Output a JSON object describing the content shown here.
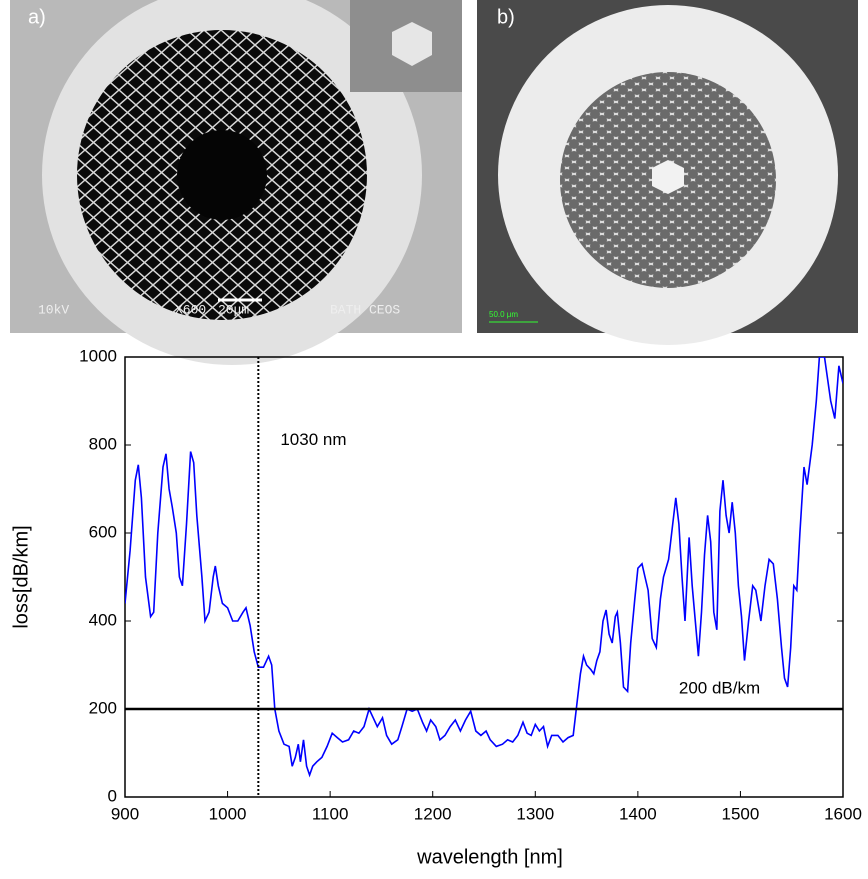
{
  "panels": [
    {
      "label": "a)",
      "texts": [
        "10kV",
        "X600",
        "20μm",
        "BATH CEOS"
      ]
    },
    {
      "label": "b)",
      "texts": [
        "50.0 μm"
      ]
    }
  ],
  "chart_data": {
    "type": "line",
    "xlabel": "wavelength [nm]",
    "ylabel": "loss[dB/km]",
    "xlim": [
      900,
      1600
    ],
    "xticks": [
      900,
      1000,
      1100,
      1200,
      1300,
      1400,
      1500,
      1600
    ],
    "ylim": [
      0,
      1000
    ],
    "yticks": [
      0,
      200,
      400,
      600,
      800,
      1000
    ],
    "vline": 1030,
    "hline": 200,
    "annotations": [
      "1030 nm",
      "200 dB/km"
    ],
    "x": [
      900,
      905,
      910,
      913,
      916,
      920,
      925,
      928,
      932,
      937,
      940,
      943,
      946,
      950,
      953,
      956,
      960,
      964,
      967,
      970,
      975,
      978,
      982,
      986,
      988,
      991,
      995,
      1000,
      1005,
      1010,
      1015,
      1018,
      1022,
      1026,
      1030,
      1035,
      1040,
      1043,
      1046,
      1050,
      1055,
      1060,
      1063,
      1066,
      1069,
      1071,
      1074,
      1077,
      1080,
      1083,
      1087,
      1092,
      1097,
      1102,
      1107,
      1112,
      1118,
      1123,
      1128,
      1133,
      1138,
      1142,
      1146,
      1151,
      1155,
      1160,
      1166,
      1170,
      1175,
      1180,
      1185,
      1190,
      1194,
      1198,
      1203,
      1207,
      1212,
      1217,
      1222,
      1227,
      1232,
      1237,
      1242,
      1247,
      1252,
      1256,
      1262,
      1268,
      1273,
      1278,
      1283,
      1288,
      1292,
      1296,
      1300,
      1304,
      1308,
      1312,
      1316,
      1322,
      1327,
      1332,
      1337,
      1340,
      1344,
      1347,
      1350,
      1354,
      1357,
      1360,
      1363,
      1366,
      1369,
      1372,
      1375,
      1378,
      1380,
      1383,
      1386,
      1390,
      1393,
      1397,
      1400,
      1404,
      1407,
      1410,
      1414,
      1418,
      1422,
      1425,
      1430,
      1434,
      1437,
      1440,
      1443,
      1446,
      1450,
      1453,
      1456,
      1459,
      1462,
      1465,
      1468,
      1471,
      1474,
      1477,
      1480,
      1483,
      1486,
      1489,
      1492,
      1495,
      1498,
      1501,
      1504,
      1508,
      1512,
      1515,
      1520,
      1524,
      1528,
      1532,
      1536,
      1540,
      1543,
      1546,
      1549,
      1552,
      1555,
      1558,
      1562,
      1565,
      1570,
      1574,
      1577,
      1582,
      1585,
      1588,
      1592,
      1596,
      1600
    ],
    "series": [
      {
        "color": "#0000ff",
        "values": [
          440,
          560,
          720,
          755,
          680,
          500,
          410,
          420,
          600,
          750,
          780,
          700,
          660,
          600,
          500,
          480,
          620,
          785,
          760,
          640,
          500,
          400,
          420,
          500,
          525,
          480,
          440,
          430,
          400,
          400,
          420,
          430,
          390,
          330,
          295,
          295,
          320,
          300,
          200,
          150,
          120,
          115,
          70,
          90,
          120,
          80,
          130,
          70,
          50,
          70,
          80,
          90,
          115,
          145,
          135,
          125,
          130,
          150,
          145,
          160,
          200,
          180,
          160,
          180,
          140,
          120,
          130,
          160,
          200,
          195,
          200,
          170,
          150,
          175,
          160,
          130,
          140,
          160,
          175,
          150,
          175,
          195,
          150,
          140,
          150,
          130,
          115,
          120,
          130,
          125,
          140,
          170,
          145,
          140,
          165,
          150,
          160,
          115,
          140,
          140,
          125,
          135,
          140,
          200,
          280,
          320,
          300,
          290,
          280,
          310,
          330,
          400,
          425,
          370,
          350,
          410,
          420,
          350,
          250,
          240,
          350,
          450,
          520,
          530,
          500,
          470,
          360,
          340,
          450,
          500,
          540,
          620,
          680,
          620,
          500,
          400,
          590,
          480,
          400,
          320,
          420,
          550,
          640,
          580,
          420,
          380,
          650,
          720,
          640,
          600,
          670,
          600,
          480,
          410,
          310,
          400,
          480,
          470,
          400,
          480,
          540,
          530,
          450,
          340,
          270,
          250,
          340,
          480,
          470,
          600,
          750,
          710,
          800,
          900,
          1000,
          1000,
          950,
          900,
          860,
          980,
          940
        ]
      }
    ]
  }
}
